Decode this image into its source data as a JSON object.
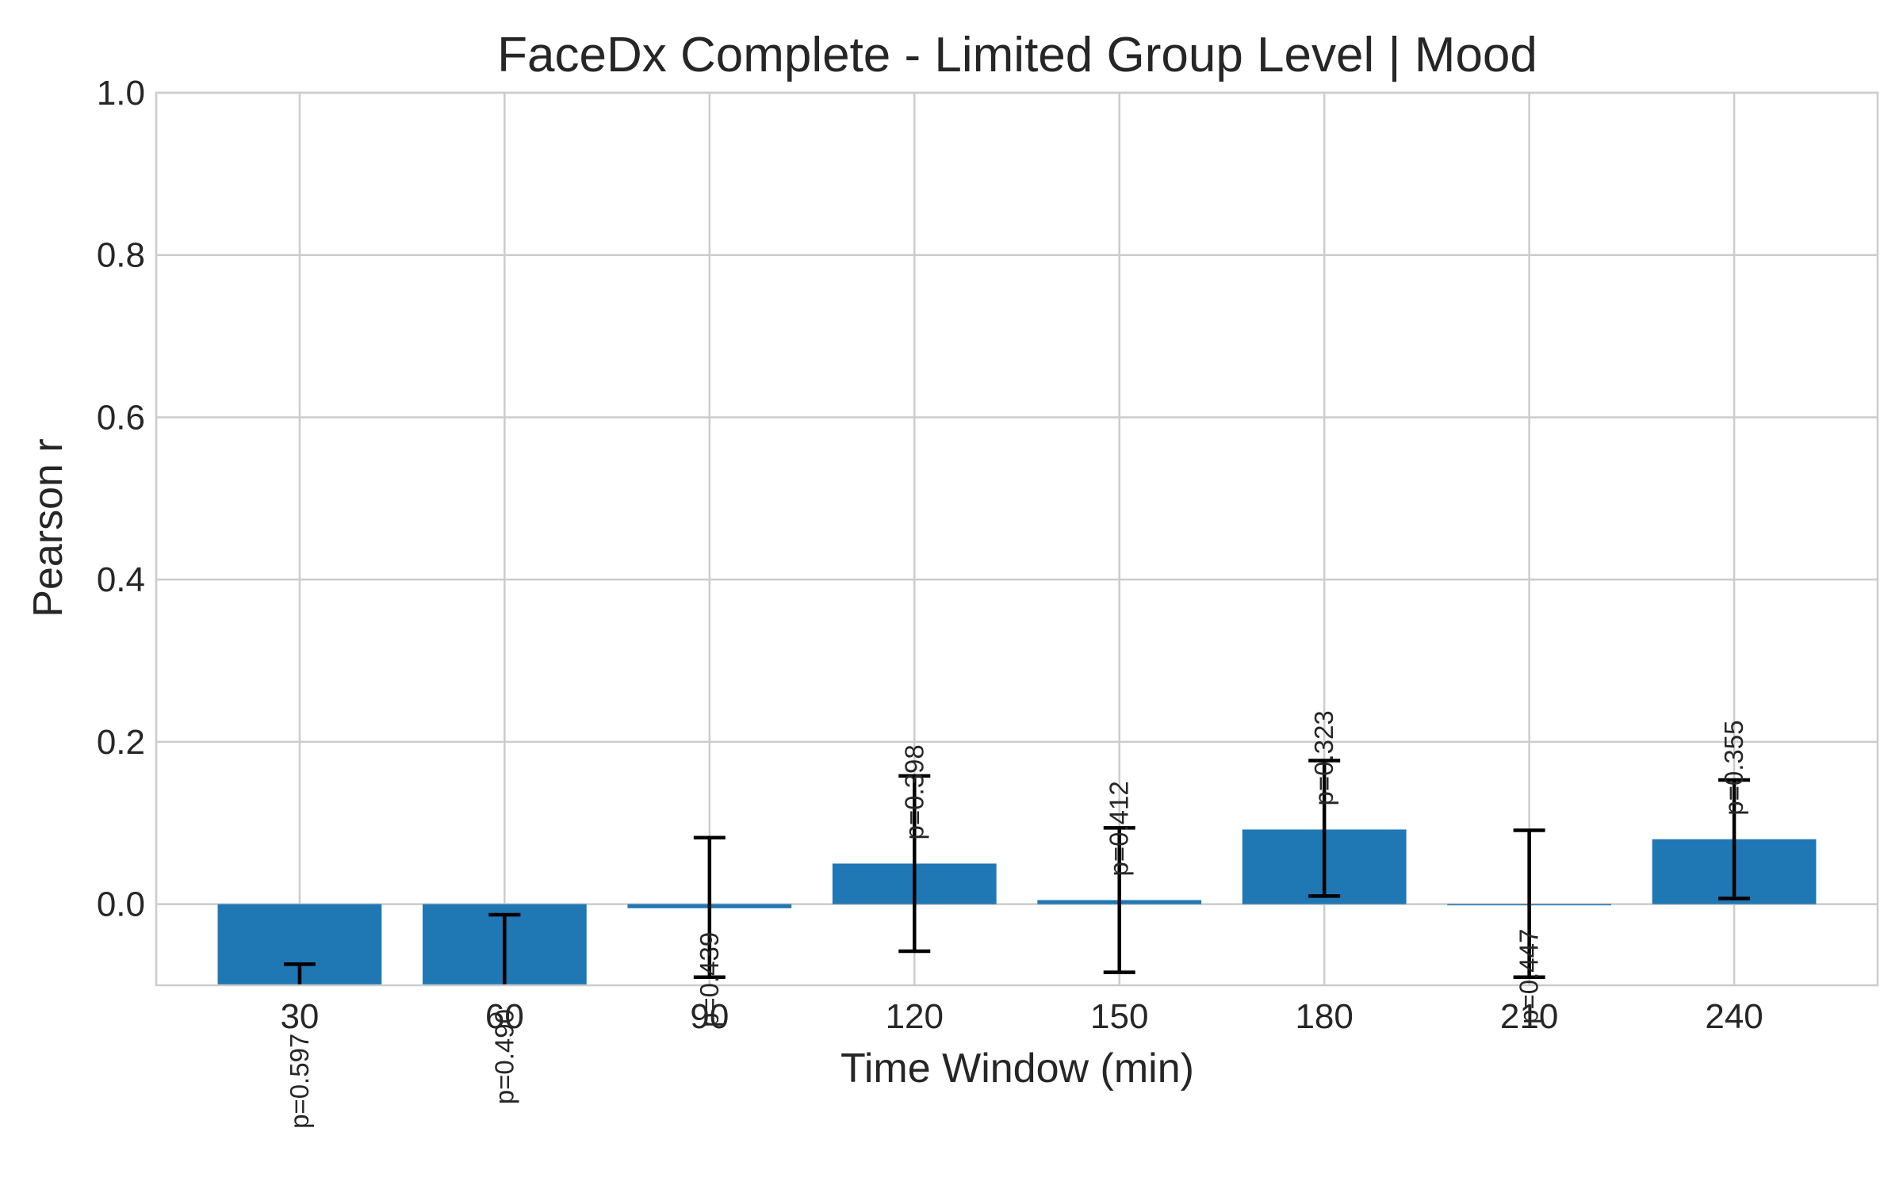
{
  "chart_data": {
    "type": "bar",
    "title": "FaceDx Complete - Limited Group Level | Mood",
    "xlabel": "Time Window (min)",
    "ylabel": "Pearson r",
    "categories": [
      "30",
      "60",
      "90",
      "120",
      "150",
      "180",
      "210",
      "240"
    ],
    "values": [
      -0.13,
      -0.1,
      -0.005,
      0.05,
      0.005,
      0.092,
      -0.001,
      0.08
    ],
    "error_low": [
      -0.29,
      -0.19,
      -0.09,
      -0.058,
      -0.084,
      0.01,
      -0.09,
      0.007
    ],
    "error_high": [
      -0.074,
      -0.013,
      0.082,
      0.158,
      0.094,
      0.177,
      0.091,
      0.153
    ],
    "p_values": [
      "p=0.597",
      "p=0.490",
      "p=0.439",
      "p=0.398",
      "p=0.412",
      "p=0.323",
      "p=0.447",
      "p=0.355"
    ],
    "ylim": [
      -0.1,
      1.0
    ],
    "yticks": [
      0.0,
      0.2,
      0.4,
      0.6,
      0.8,
      1.0
    ],
    "ytick_labels": [
      "0.0",
      "0.2",
      "0.4",
      "0.6",
      "0.8",
      "1.0"
    ],
    "grid": true,
    "bar_color": "#1f77b4",
    "errorbar_color": "#000000",
    "grid_color": "#cccccc",
    "text_color": "#262626"
  }
}
